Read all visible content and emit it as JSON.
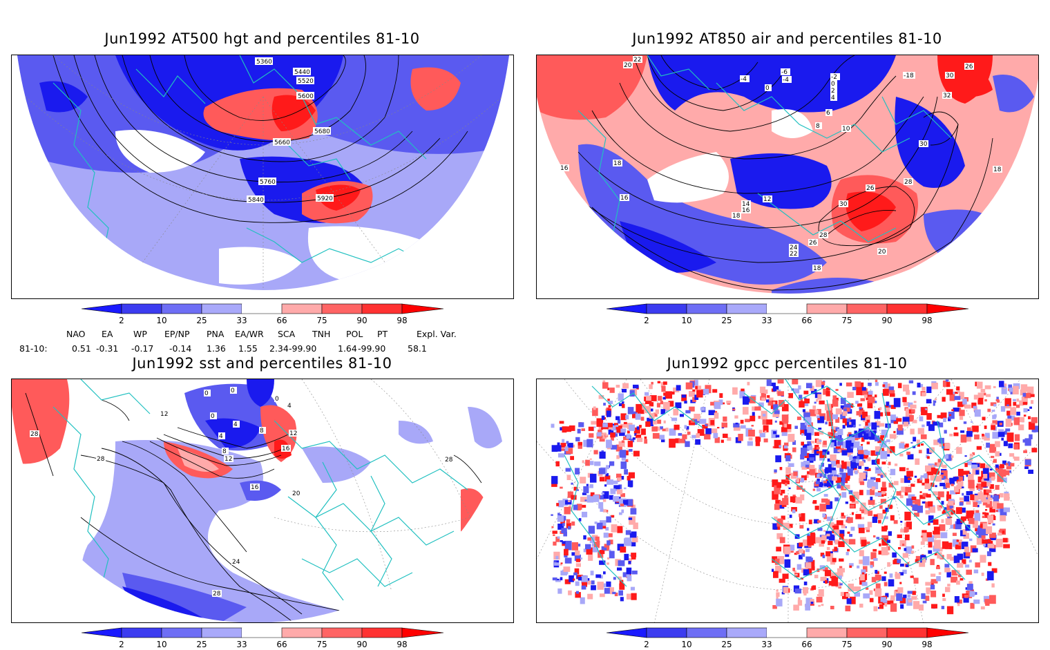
{
  "panels": [
    {
      "id": "hgt",
      "title": "Jun1992 AT500 hgt and percentiles 81-10",
      "contour_labels": [
        "5360",
        "5440",
        "5520",
        "5600",
        "5680",
        "5660",
        "5760",
        "5840",
        "5920"
      ]
    },
    {
      "id": "air",
      "title": "Jun1992 AT850 air and percentiles 81-10",
      "contour_labels": [
        "22",
        "20",
        "-4",
        "-6",
        "-4",
        "0",
        "-2",
        "0",
        "2",
        "4",
        "6",
        "8",
        "10",
        "-18",
        "26",
        "30",
        "32",
        "30",
        "18",
        "16",
        "18",
        "16",
        "12",
        "14",
        "16",
        "18",
        "26",
        "28",
        "30",
        "28",
        "26",
        "24",
        "22",
        "20",
        "18",
        "16"
      ]
    },
    {
      "id": "sst",
      "title": "Jun1992 sst and percentiles 81-10",
      "contour_labels": [
        "0",
        "0",
        "0",
        "4",
        "12",
        "0",
        "4",
        "8",
        "16",
        "12",
        "4",
        "8",
        "12",
        "16",
        "20",
        "28",
        "28",
        "28",
        "24",
        "28"
      ]
    },
    {
      "id": "gpcc",
      "title": "Jun1992 gpcc percentiles 81-10",
      "contour_labels": []
    }
  ],
  "colorbar": {
    "ticks": [
      "2",
      "10",
      "25",
      "33",
      "66",
      "75",
      "90",
      "98"
    ],
    "colors": [
      "#1a1aff",
      "#3c3cf0",
      "#6e6ef5",
      "#a9a9fa",
      "#ffffff",
      "#ffaaaa",
      "#ff6464",
      "#ff3232",
      "#ff0000"
    ]
  },
  "indices": {
    "headers": [
      "NAO",
      "EA",
      "WP",
      "EP/NP",
      "PNA",
      "EA/WR",
      "SCA",
      "TNH",
      "POL",
      "PT",
      "Expl. Var."
    ],
    "row_label": "81-10:",
    "values": [
      "0.51",
      "-0.31",
      "-0.17",
      "-0.14",
      "1.36",
      "1.55",
      "2.34",
      "-99.90",
      "1.64",
      "-99.90",
      "58.1"
    ]
  },
  "colors": {
    "land_outline": "#20c0c0",
    "contour": "#000000",
    "blue_dark": "#1a1aee",
    "blue_mid": "#5a5af0",
    "blue_light": "#a8a8f8",
    "red_light": "#ffaaaa",
    "red_mid": "#ff5a5a",
    "red_dark": "#ff1a1a"
  }
}
